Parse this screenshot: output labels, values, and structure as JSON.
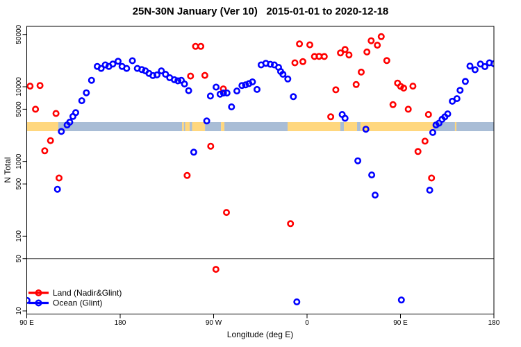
{
  "chart_data": {
    "type": "scatter",
    "title": "25N-30N January (Ver 10)   2015-01-01 to 2020-12-18",
    "xlabel": "Longitude (deg E)",
    "ylabel": "N Total",
    "y_scale": "log10",
    "ylim": [
      10,
      50000
    ],
    "x_axis": {
      "note": "longitude shown eastward from 90E wrapping past the dateline to 180; display degrees 90-540",
      "range": [
        90,
        540
      ],
      "ticks": [
        90,
        180,
        270,
        360,
        450,
        540
      ],
      "tick_labels": [
        "90 E",
        "180",
        "90 W",
        "0",
        "90 E",
        "180"
      ]
    },
    "y_axis": {
      "ticks": [
        50000,
        10000,
        5000,
        1000,
        500,
        100,
        50,
        10
      ],
      "tick_labels": [
        "50000",
        "10000",
        "5000",
        "1000",
        "500",
        "100",
        "50",
        "10"
      ]
    },
    "reference_line_y": 50,
    "grid": false,
    "legend": {
      "position": "bottom-left",
      "entries": [
        {
          "label": "Land (Nadir&Glint)",
          "color": "#ff0000"
        },
        {
          "label": "Ocean (Glint)",
          "color": "#0000ff"
        }
      ]
    },
    "surface_band": {
      "description": "land/ocean surface-type strip drawn across the plot",
      "value_range": [
        2540,
        3370
      ],
      "land_color": "#ffd77e",
      "ocean_color": "#a9bdd6",
      "segments": [
        {
          "from": 90.0,
          "to": 120.4,
          "surface": "land"
        },
        {
          "from": 120.4,
          "to": 239.6,
          "surface": "ocean"
        },
        {
          "from": 239.6,
          "to": 241.4,
          "surface": "land"
        },
        {
          "from": 241.4,
          "to": 242.6,
          "surface": "ocean"
        },
        {
          "from": 242.6,
          "to": 247.0,
          "surface": "land"
        },
        {
          "from": 247.0,
          "to": 249.3,
          "surface": "ocean"
        },
        {
          "from": 249.3,
          "to": 261.7,
          "surface": "land"
        },
        {
          "from": 261.7,
          "to": 277.1,
          "surface": "ocean"
        },
        {
          "from": 277.1,
          "to": 280.4,
          "surface": "land"
        },
        {
          "from": 280.4,
          "to": 341.3,
          "surface": "ocean"
        },
        {
          "from": 341.3,
          "to": 392.1,
          "surface": "land"
        },
        {
          "from": 392.1,
          "to": 395.5,
          "surface": "ocean"
        },
        {
          "from": 395.5,
          "to": 408.2,
          "surface": "land"
        },
        {
          "from": 408.2,
          "to": 411.5,
          "surface": "ocean"
        },
        {
          "from": 411.5,
          "to": 481.8,
          "surface": "land"
        },
        {
          "from": 481.8,
          "to": 502.5,
          "surface": "ocean"
        },
        {
          "from": 502.5,
          "to": 503.9,
          "surface": "land"
        },
        {
          "from": 503.9,
          "to": 540.0,
          "surface": "ocean"
        }
      ]
    },
    "series": [
      {
        "name": "Land (Nadir&Glint)",
        "color": "#ff0000",
        "points": [
          [
            93.2,
            10200
          ],
          [
            102.8,
            10400
          ],
          [
            98.4,
            5000
          ],
          [
            118.2,
            4390
          ],
          [
            112.9,
            1900
          ],
          [
            107.3,
            1390
          ],
          [
            121.1,
            600
          ],
          [
            252.6,
            34700
          ],
          [
            257.7,
            34700
          ],
          [
            247.8,
            13900
          ],
          [
            261.6,
            14200
          ],
          [
            279.4,
            9350
          ],
          [
            267.2,
            1600
          ],
          [
            244.5,
            650
          ],
          [
            282.4,
            208
          ],
          [
            272.2,
            36
          ],
          [
            344.1,
            147
          ],
          [
            352.7,
            37400
          ],
          [
            362.7,
            36400
          ],
          [
            367.2,
            25400
          ],
          [
            371.6,
            25500
          ],
          [
            376.6,
            25400
          ],
          [
            348.3,
            20900
          ],
          [
            356.0,
            21700
          ],
          [
            392.2,
            28300
          ],
          [
            396.6,
            31500
          ],
          [
            400.4,
            26600
          ],
          [
            382.8,
            3960
          ],
          [
            387.7,
            9100
          ],
          [
            407.3,
            10700
          ],
          [
            412.2,
            15700
          ],
          [
            417.7,
            29200
          ],
          [
            421.8,
            41300
          ],
          [
            427.7,
            36000
          ],
          [
            431.5,
            46800
          ],
          [
            436.8,
            22400
          ],
          [
            447.2,
            11200
          ],
          [
            450.2,
            10100
          ],
          [
            453.1,
            9600
          ],
          [
            462.0,
            10200
          ],
          [
            442.8,
            5760
          ],
          [
            457.5,
            5000
          ],
          [
            477.0,
            4250
          ],
          [
            473.6,
            1870
          ],
          [
            466.9,
            1360
          ],
          [
            479.9,
            600
          ]
        ]
      },
      {
        "name": "Ocean (Glint)",
        "color": "#0000ff",
        "points": [
          [
            119.6,
            425
          ],
          [
            123.3,
            2520
          ],
          [
            128.9,
            3080
          ],
          [
            131.4,
            3360
          ],
          [
            134.5,
            4000
          ],
          [
            137.2,
            4500
          ],
          [
            143.0,
            6500
          ],
          [
            147.4,
            8300
          ],
          [
            152.4,
            12200
          ],
          [
            157.9,
            18700
          ],
          [
            161.7,
            17600
          ],
          [
            165.7,
            19600
          ],
          [
            169.1,
            18700
          ],
          [
            172.9,
            20100
          ],
          [
            178.0,
            21900
          ],
          [
            181.8,
            18700
          ],
          [
            186.2,
            17600
          ],
          [
            191.8,
            22300
          ],
          [
            196.5,
            17600
          ],
          [
            200.8,
            17000
          ],
          [
            204.3,
            16300
          ],
          [
            207.7,
            15100
          ],
          [
            211.5,
            14100
          ],
          [
            215.5,
            14400
          ],
          [
            219.7,
            16300
          ],
          [
            223.7,
            14700
          ],
          [
            227.7,
            13200
          ],
          [
            232.2,
            12400
          ],
          [
            235.6,
            12000
          ],
          [
            238.9,
            12200
          ],
          [
            242.0,
            10900
          ],
          [
            246.0,
            8870
          ],
          [
            250.9,
            1330
          ],
          [
            263.4,
            3480
          ],
          [
            266.9,
            7500
          ],
          [
            272.4,
            9900
          ],
          [
            276.2,
            7960
          ],
          [
            279.5,
            8250
          ],
          [
            282.9,
            8250
          ],
          [
            287.3,
            5380
          ],
          [
            292.4,
            8770
          ],
          [
            297.3,
            10400
          ],
          [
            300.7,
            10600
          ],
          [
            304.0,
            11000
          ],
          [
            307.4,
            11600
          ],
          [
            311.8,
            9200
          ],
          [
            315.8,
            19600
          ],
          [
            320.3,
            20600
          ],
          [
            324.7,
            20000
          ],
          [
            328.5,
            19600
          ],
          [
            332.6,
            18200
          ],
          [
            334.6,
            16000
          ],
          [
            336.8,
            14700
          ],
          [
            341.5,
            12700
          ],
          [
            346.8,
            7360
          ],
          [
            350.2,
            13.2
          ],
          [
            90.3,
            13.8
          ],
          [
            393.9,
            4250
          ],
          [
            396.6,
            3790
          ],
          [
            408.9,
            1020
          ],
          [
            416.7,
            2700
          ],
          [
            422.3,
            660
          ],
          [
            425.6,
            355
          ],
          [
            450.9,
            14
          ],
          [
            478.2,
            413
          ],
          [
            481.1,
            2440
          ],
          [
            484.2,
            3080
          ],
          [
            487.1,
            3250
          ],
          [
            490.1,
            3670
          ],
          [
            492.7,
            3950
          ],
          [
            495.5,
            4330
          ],
          [
            499.9,
            6400
          ],
          [
            504.4,
            6930
          ],
          [
            507.4,
            8960
          ],
          [
            512.5,
            11800
          ],
          [
            516.9,
            18900
          ],
          [
            521.9,
            16900
          ],
          [
            527.0,
            20100
          ],
          [
            531.3,
            18600
          ],
          [
            535.7,
            20900
          ],
          [
            540.0,
            20300
          ]
        ]
      }
    ]
  }
}
